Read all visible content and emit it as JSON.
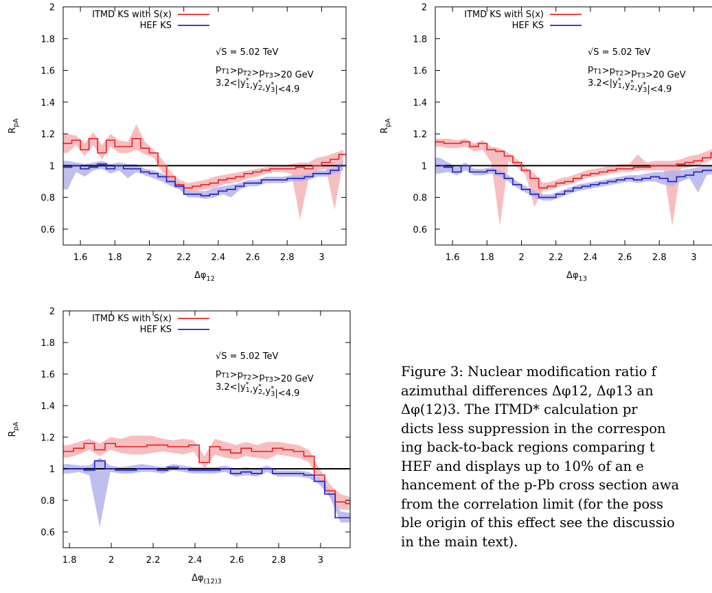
{
  "chart_data": [
    {
      "type": "line",
      "ylabel": "R_pA",
      "xlabel": "Δφ_12",
      "xlim": [
        1.5,
        3.14159
      ],
      "ylim": [
        0.5,
        2.0
      ],
      "x_ticks": [
        "1.6",
        "1.8",
        "2",
        "2.2",
        "2.4",
        "2.6",
        "2.8",
        "3"
      ],
      "y_ticks": [
        "0.6",
        "0.8",
        "1",
        "1.2",
        "1.4",
        "1.6",
        "1.8",
        "2"
      ],
      "reference_line": 1.0,
      "legend_position": "top-left",
      "annotation": [
        "√S = 5.02 TeV",
        "p_T1>p_T2>p_T3>20 GeV",
        "3.2<|y*_1,y*_2,y*_3|<4.9"
      ],
      "series": [
        {
          "name": "ITMD KS with S(x)",
          "color": "#e8262b",
          "band_color": "#f6b3b5",
          "x": [
            1.5,
            1.55,
            1.6,
            1.65,
            1.7,
            1.75,
            1.8,
            1.85,
            1.9,
            1.95,
            2.0,
            2.05,
            2.1,
            2.15,
            2.2,
            2.25,
            2.3,
            2.35,
            2.4,
            2.45,
            2.5,
            2.55,
            2.6,
            2.65,
            2.7,
            2.75,
            2.8,
            2.85,
            2.9,
            2.95,
            3.0,
            3.05,
            3.1
          ],
          "values": [
            1.14,
            1.16,
            1.1,
            1.17,
            1.08,
            1.16,
            1.12,
            1.12,
            1.17,
            1.11,
            1.08,
            1.0,
            0.93,
            0.88,
            0.86,
            0.87,
            0.88,
            0.89,
            0.91,
            0.92,
            0.93,
            0.95,
            0.96,
            0.97,
            0.98,
            0.98,
            0.98,
            0.99,
            0.98,
            1.0,
            1.02,
            1.04,
            1.07
          ],
          "band_upper": [
            1.2,
            1.19,
            1.14,
            1.21,
            1.13,
            1.2,
            1.16,
            1.15,
            1.26,
            1.15,
            1.1,
            1.04,
            0.96,
            0.91,
            0.89,
            0.9,
            0.91,
            0.93,
            0.94,
            0.95,
            0.96,
            0.97,
            0.98,
            0.99,
            1.0,
            1.0,
            1.01,
            1.02,
            1.02,
            1.05,
            1.06,
            1.08,
            1.1
          ],
          "band_lower": [
            1.08,
            1.13,
            1.06,
            1.13,
            1.04,
            1.12,
            1.08,
            1.08,
            1.1,
            1.07,
            1.05,
            0.96,
            0.9,
            0.85,
            0.83,
            0.84,
            0.85,
            0.86,
            0.88,
            0.89,
            0.9,
            0.92,
            0.93,
            0.95,
            0.96,
            0.96,
            0.95,
            0.66,
            0.92,
            0.97,
            0.98,
            0.72,
            1.03
          ]
        },
        {
          "name": "HEF KS",
          "color": "#2323c8",
          "band_color": "#b4b4ea",
          "x": [
            1.5,
            1.55,
            1.6,
            1.65,
            1.7,
            1.75,
            1.8,
            1.85,
            1.9,
            1.95,
            2.0,
            2.05,
            2.1,
            2.15,
            2.2,
            2.25,
            2.3,
            2.35,
            2.4,
            2.45,
            2.5,
            2.55,
            2.6,
            2.65,
            2.7,
            2.75,
            2.8,
            2.85,
            2.9,
            2.95,
            3.0,
            3.05,
            3.1
          ],
          "values": [
            0.99,
            1.0,
            0.98,
            0.99,
            1.01,
            0.98,
            1.0,
            0.98,
            0.98,
            0.96,
            0.95,
            0.93,
            0.9,
            0.87,
            0.82,
            0.82,
            0.81,
            0.82,
            0.84,
            0.85,
            0.87,
            0.89,
            0.89,
            0.91,
            0.91,
            0.91,
            0.92,
            0.92,
            0.93,
            0.95,
            0.95,
            0.97,
            1.0
          ],
          "band_upper": [
            1.03,
            1.02,
            1.01,
            1.02,
            1.03,
            1.01,
            1.02,
            1.01,
            1.01,
            0.98,
            0.97,
            0.95,
            0.92,
            0.89,
            0.84,
            0.84,
            0.84,
            0.86,
            0.87,
            0.88,
            0.89,
            0.91,
            0.91,
            0.93,
            0.93,
            0.93,
            0.94,
            0.94,
            0.95,
            0.97,
            0.97,
            0.99,
            1.03
          ],
          "band_lower": [
            0.85,
            0.96,
            0.93,
            0.97,
            0.98,
            0.95,
            0.97,
            0.92,
            0.96,
            0.94,
            0.92,
            0.9,
            0.87,
            0.85,
            0.8,
            0.8,
            0.79,
            0.8,
            0.82,
            0.8,
            0.85,
            0.87,
            0.87,
            0.89,
            0.89,
            0.89,
            0.9,
            0.9,
            0.91,
            0.93,
            0.93,
            0.95,
            0.97
          ]
        }
      ]
    },
    {
      "type": "line",
      "ylabel": "R_pA",
      "xlabel": "Δφ_13",
      "xlim": [
        1.5,
        3.14159
      ],
      "ylim": [
        0.5,
        2.0
      ],
      "x_ticks": [
        "1.6",
        "1.8",
        "2",
        "2.2",
        "2.4",
        "2.6",
        "2.8",
        "3"
      ],
      "y_ticks": [
        "0.6",
        "0.8",
        "1",
        "1.2",
        "1.4",
        "1.6",
        "1.8",
        "2"
      ],
      "reference_line": 1.0,
      "legend_position": "top-left",
      "annotation": [
        "√S = 5.02 TeV",
        "p_T1>p_T2>p_T3>20 GeV",
        "3.2<|y*_1,y*_2,y*_3|<4.9"
      ],
      "series": [
        {
          "name": "ITMD KS with S(x)",
          "color": "#e8262b",
          "band_color": "#f6b3b5",
          "x": [
            1.5,
            1.55,
            1.6,
            1.65,
            1.7,
            1.75,
            1.8,
            1.85,
            1.9,
            1.95,
            2.0,
            2.05,
            2.1,
            2.15,
            2.2,
            2.25,
            2.3,
            2.35,
            2.4,
            2.45,
            2.5,
            2.55,
            2.6,
            2.65,
            2.7,
            2.75,
            2.8,
            2.85,
            2.9,
            2.95,
            3.0,
            3.05,
            3.1
          ],
          "values": [
            1.15,
            1.14,
            1.14,
            1.15,
            1.12,
            1.14,
            1.1,
            1.09,
            1.06,
            1.02,
            0.97,
            0.92,
            0.86,
            0.87,
            0.89,
            0.9,
            0.92,
            0.94,
            0.95,
            0.96,
            0.97,
            0.98,
            0.98,
            0.99,
            0.99,
            1.0,
            1.0,
            1.0,
            1.01,
            1.02,
            1.03,
            1.05,
            1.08
          ],
          "band_upper": [
            1.17,
            1.17,
            1.16,
            1.17,
            1.14,
            1.16,
            1.12,
            1.11,
            1.08,
            1.04,
            0.99,
            0.95,
            0.89,
            0.9,
            0.92,
            0.93,
            0.95,
            0.97,
            0.98,
            0.99,
            1.0,
            1.01,
            1.01,
            1.07,
            1.02,
            1.03,
            1.03,
            1.03,
            1.04,
            1.06,
            1.07,
            1.09,
            1.11
          ],
          "band_lower": [
            1.12,
            1.11,
            1.11,
            1.12,
            1.09,
            1.1,
            1.02,
            0.62,
            1.03,
            0.99,
            0.94,
            0.74,
            0.84,
            0.85,
            0.87,
            0.88,
            0.9,
            0.92,
            0.93,
            0.94,
            0.95,
            0.96,
            0.96,
            0.97,
            0.97,
            0.97,
            0.97,
            0.62,
            0.98,
            0.99,
            1.0,
            1.02,
            1.05
          ]
        },
        {
          "name": "HEF KS",
          "color": "#2323c8",
          "band_color": "#b4b4ea",
          "x": [
            1.5,
            1.55,
            1.6,
            1.65,
            1.7,
            1.75,
            1.8,
            1.85,
            1.9,
            1.95,
            2.0,
            2.05,
            2.1,
            2.15,
            2.2,
            2.25,
            2.3,
            2.35,
            2.4,
            2.45,
            2.5,
            2.55,
            2.6,
            2.65,
            2.7,
            2.75,
            2.8,
            2.85,
            2.9,
            2.95,
            3.0,
            3.05,
            3.1
          ],
          "values": [
            1.0,
            0.99,
            0.96,
            1.0,
            0.96,
            0.96,
            0.97,
            0.95,
            0.92,
            0.88,
            0.85,
            0.82,
            0.8,
            0.8,
            0.82,
            0.84,
            0.86,
            0.87,
            0.88,
            0.89,
            0.9,
            0.91,
            0.92,
            0.91,
            0.92,
            0.93,
            0.92,
            0.9,
            0.93,
            0.94,
            0.96,
            0.97,
            0.97
          ],
          "band_upper": [
            1.05,
            1.02,
            0.99,
            1.02,
            0.98,
            0.98,
            0.99,
            0.97,
            0.94,
            0.9,
            0.87,
            0.84,
            0.82,
            0.82,
            0.84,
            0.86,
            0.88,
            0.89,
            0.9,
            0.91,
            0.92,
            0.93,
            0.94,
            0.94,
            0.95,
            0.96,
            0.96,
            0.97,
            0.97,
            0.98,
            0.99,
            1.0,
            1.0
          ],
          "band_lower": [
            0.95,
            0.96,
            0.94,
            0.97,
            0.94,
            0.94,
            0.95,
            0.93,
            0.9,
            0.86,
            0.83,
            0.8,
            0.78,
            0.78,
            0.8,
            0.82,
            0.84,
            0.85,
            0.86,
            0.87,
            0.88,
            0.89,
            0.9,
            0.89,
            0.9,
            0.9,
            0.88,
            0.87,
            0.9,
            0.92,
            0.83,
            0.94,
            0.95
          ]
        }
      ]
    },
    {
      "type": "line",
      "ylabel": "R_pA",
      "xlabel": "Δφ_(12)3",
      "xlim": [
        1.77,
        3.14159
      ],
      "ylim": [
        0.5,
        2.0
      ],
      "x_ticks": [
        "1.8",
        "2",
        "2.2",
        "2.4",
        "2.6",
        "2.8",
        "3"
      ],
      "y_ticks": [
        "0.6",
        "0.8",
        "1",
        "1.2",
        "1.4",
        "1.6",
        "1.8",
        "2"
      ],
      "reference_line": 1.0,
      "legend_position": "top-left",
      "annotation": [
        "√S = 5.02 TeV",
        "p_T1>p_T2>p_T3>20 GeV",
        "3.2<|y*_1,y*_2,y*_3|<4.9"
      ],
      "series": [
        {
          "name": "ITMD KS with S(x)",
          "color": "#e8262b",
          "band_color": "#f6b3b5",
          "x": [
            1.77,
            1.82,
            1.87,
            1.92,
            1.97,
            2.02,
            2.07,
            2.12,
            2.17,
            2.22,
            2.27,
            2.32,
            2.37,
            2.42,
            2.47,
            2.52,
            2.57,
            2.62,
            2.67,
            2.72,
            2.77,
            2.82,
            2.87,
            2.92,
            2.97,
            3.02,
            3.07,
            3.12
          ],
          "values": [
            1.11,
            1.13,
            1.16,
            1.12,
            1.16,
            1.14,
            1.14,
            1.14,
            1.15,
            1.15,
            1.14,
            1.14,
            1.15,
            1.04,
            1.14,
            1.12,
            1.1,
            1.13,
            1.11,
            1.11,
            1.13,
            1.12,
            1.11,
            1.08,
            0.96,
            0.86,
            0.79,
            0.78
          ],
          "band_upper": [
            1.15,
            1.17,
            1.19,
            1.16,
            1.2,
            1.19,
            1.21,
            1.21,
            1.21,
            1.19,
            1.18,
            1.19,
            1.18,
            1.08,
            1.19,
            1.17,
            1.15,
            1.17,
            1.15,
            1.17,
            1.17,
            1.16,
            1.15,
            1.12,
            1.0,
            0.9,
            0.84,
            0.82
          ],
          "band_lower": [
            1.07,
            1.09,
            1.12,
            1.08,
            1.12,
            1.1,
            1.09,
            1.09,
            1.1,
            1.11,
            1.1,
            1.09,
            1.11,
            1.0,
            1.09,
            1.07,
            1.06,
            1.08,
            1.07,
            1.06,
            1.09,
            1.08,
            1.07,
            1.04,
            0.92,
            0.82,
            0.74,
            0.74
          ]
        },
        {
          "name": "HEF KS",
          "color": "#2323c8",
          "band_color": "#b4b4ea",
          "x": [
            1.77,
            1.82,
            1.87,
            1.92,
            1.97,
            2.02,
            2.07,
            2.12,
            2.17,
            2.22,
            2.27,
            2.32,
            2.37,
            2.42,
            2.47,
            2.52,
            2.57,
            2.62,
            2.67,
            2.72,
            2.77,
            2.82,
            2.87,
            2.92,
            2.97,
            3.02,
            3.07,
            3.12
          ],
          "values": [
            1.0,
            1.0,
            0.99,
            1.05,
            1.0,
            0.99,
            0.99,
            1.0,
            1.0,
            0.99,
            1.01,
            1.0,
            0.99,
            0.99,
            0.99,
            1.0,
            0.97,
            0.98,
            0.97,
            1.0,
            0.97,
            0.97,
            0.97,
            0.96,
            0.92,
            0.84,
            0.69,
            0.69
          ],
          "band_upper": [
            1.03,
            1.02,
            1.02,
            1.07,
            1.02,
            1.01,
            1.02,
            1.03,
            1.02,
            1.01,
            1.03,
            1.02,
            1.01,
            1.01,
            1.01,
            1.02,
            1.0,
            1.01,
            1.0,
            1.02,
            0.99,
            0.99,
            0.99,
            0.98,
            0.94,
            0.86,
            0.73,
            0.72
          ],
          "band_lower": [
            0.97,
            0.98,
            0.96,
            0.63,
            0.98,
            0.97,
            0.97,
            0.98,
            0.98,
            0.97,
            0.99,
            0.98,
            0.97,
            0.97,
            0.97,
            0.98,
            0.95,
            0.96,
            0.95,
            0.98,
            0.95,
            0.95,
            0.95,
            0.94,
            0.9,
            0.82,
            0.66,
            0.66
          ]
        }
      ]
    }
  ],
  "caption": {
    "line1": "Figure 3: Nuclear modification ratio f",
    "line2": "azimuthal differences Δφ12, Δφ13 an",
    "line3": "Δφ(12)3. The ITMD* calculation pr",
    "line4": "dicts less suppression in the correspon",
    "line5": "ing back-to-back regions comparing t",
    "line6": "HEF and displays up to 10% of an e",
    "line7": "hancement of the p-Pb cross section awa",
    "line8": "from the correlation limit (for the poss",
    "line9": "ble origin of this effect see the discussio",
    "line10": "in the main text)."
  }
}
